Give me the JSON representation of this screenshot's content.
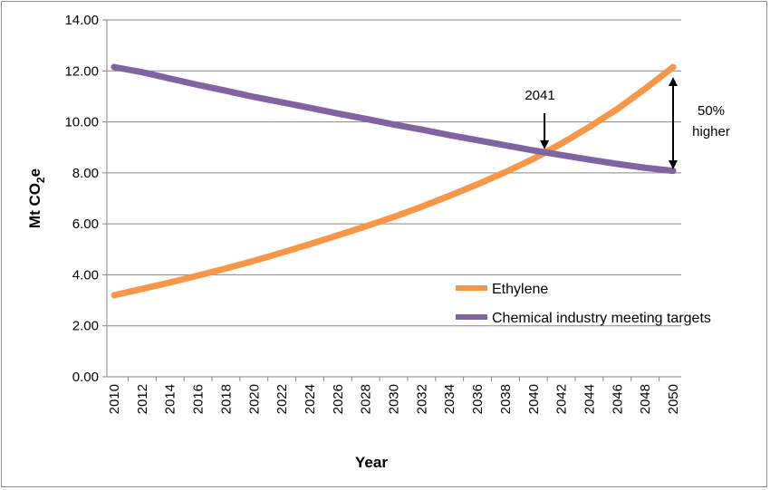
{
  "chart_data": {
    "type": "line",
    "xlabel": "Year",
    "ylabel_parts": [
      "Mt CO",
      "2",
      "e"
    ],
    "ylim": [
      0,
      14
    ],
    "yticks": [
      "0.00",
      "2.00",
      "4.00",
      "6.00",
      "8.00",
      "10.00",
      "12.00",
      "14.00"
    ],
    "x": [
      2010,
      2012,
      2014,
      2016,
      2018,
      2020,
      2022,
      2024,
      2026,
      2028,
      2030,
      2032,
      2034,
      2036,
      2038,
      2040,
      2042,
      2044,
      2046,
      2048,
      2050
    ],
    "grid": "horizontal",
    "legend_position": "bottom-right",
    "series": [
      {
        "name": "Ethylene",
        "color": "#F79646",
        "values": [
          3.2,
          3.45,
          3.7,
          3.97,
          4.25,
          4.55,
          4.87,
          5.2,
          5.55,
          5.9,
          6.27,
          6.67,
          7.1,
          7.55,
          8.03,
          8.55,
          9.15,
          9.8,
          10.5,
          11.3,
          12.15
        ]
      },
      {
        "name": "Chemical industry meeting targets",
        "color": "#8064A2",
        "values": [
          12.15,
          11.95,
          11.7,
          11.45,
          11.22,
          10.98,
          10.77,
          10.55,
          10.33,
          10.12,
          9.9,
          9.7,
          9.48,
          9.28,
          9.08,
          8.88,
          8.7,
          8.52,
          8.35,
          8.2,
          8.08
        ]
      }
    ],
    "annotations": {
      "crossover_label": "2041",
      "crossover_year": 2040.8,
      "crossover_value": 8.85,
      "gap_label_line1": "50%",
      "gap_label_line2": "higher"
    }
  }
}
